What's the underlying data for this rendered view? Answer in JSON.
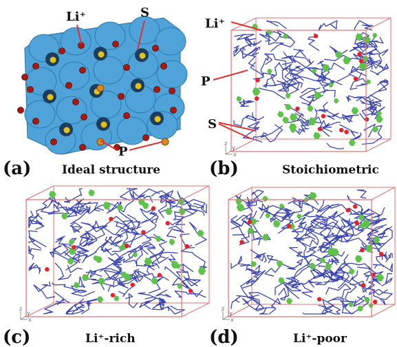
{
  "panels": [
    {
      "letter": "(a)",
      "caption": "Ideal structure"
    },
    {
      "letter": "(b)",
      "caption": "Stoichiometric"
    },
    {
      "letter": "(c)",
      "caption": "Li⁺-rich"
    },
    {
      "letter": "(d)",
      "caption": "Li⁺-poor"
    }
  ],
  "callouts": {
    "a_li": "Li⁺",
    "a_s": "S",
    "a_p": "P",
    "b_li": "Li⁺",
    "b_p": "P",
    "b_s": "S"
  },
  "axis_labels": {
    "z": "z",
    "x": "x",
    "y": "Y"
  },
  "colors": {
    "framework": "#4fa3d8",
    "framework_dark": "#1d3d5c",
    "lithium": "#a51a12",
    "sulfur": "#e0c21a",
    "phosphorus": "#d98a1c",
    "trajectory": "#3a44b0",
    "s_cluster": "#5fc24a",
    "p_atom": "#e8202a",
    "box": "#e07070",
    "callout_line": "#e03030"
  }
}
